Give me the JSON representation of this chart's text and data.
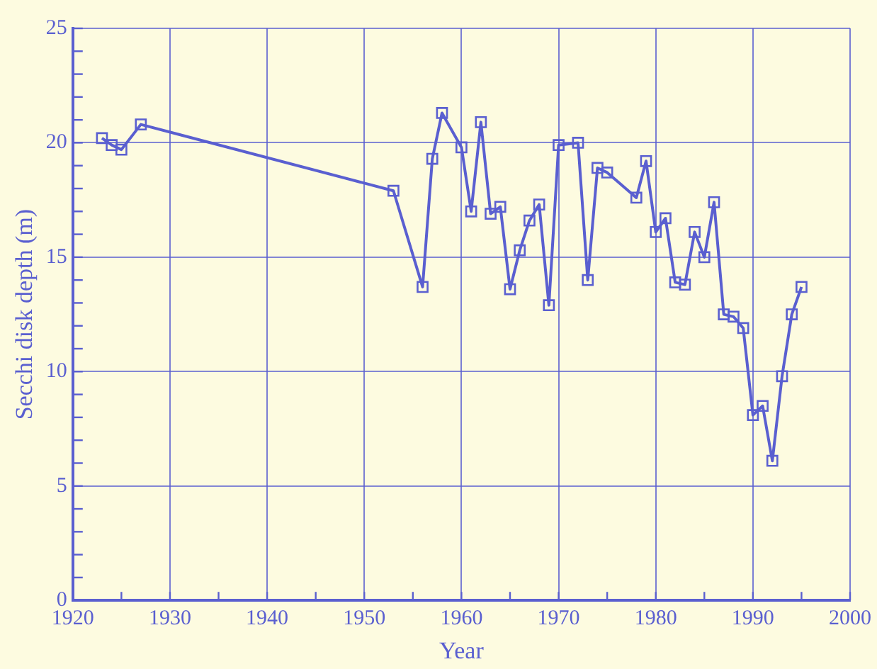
{
  "chart_data": {
    "type": "line",
    "xlabel": "Year",
    "ylabel": "Secchi disk depth (m)",
    "x": [
      1923,
      1924,
      1925,
      1927,
      1953,
      1956,
      1957,
      1958,
      1960,
      1961,
      1962,
      1963,
      1964,
      1965,
      1966,
      1967,
      1968,
      1969,
      1970,
      1972,
      1973,
      1974,
      1975,
      1978,
      1979,
      1980,
      1981,
      1982,
      1983,
      1984,
      1985,
      1986,
      1987,
      1988,
      1989,
      1990,
      1991,
      1992,
      1993,
      1994,
      1995
    ],
    "series": [
      {
        "color": "#5a5fd0",
        "values": [
          20.2,
          19.9,
          19.7,
          20.8,
          17.9,
          13.7,
          19.3,
          21.3,
          19.8,
          17.0,
          20.9,
          16.9,
          17.2,
          13.6,
          15.3,
          16.6,
          17.3,
          12.9,
          19.9,
          20.0,
          14.0,
          18.9,
          18.7,
          17.6,
          19.2,
          16.1,
          16.7,
          13.9,
          13.8,
          16.1,
          15.0,
          17.4,
          12.5,
          12.4,
          11.9,
          8.1,
          8.5,
          6.1,
          9.8,
          12.5,
          13.7
        ]
      }
    ],
    "xlim": [
      1920,
      2000
    ],
    "xticks": [
      1920,
      1930,
      1940,
      1950,
      1960,
      1970,
      1980,
      1990,
      2000
    ],
    "ylim": [
      0,
      25
    ],
    "yticks": [
      0,
      5,
      10,
      15,
      20,
      25
    ],
    "grid": true,
    "legend": false,
    "marker": "square",
    "line_style": "solid"
  }
}
